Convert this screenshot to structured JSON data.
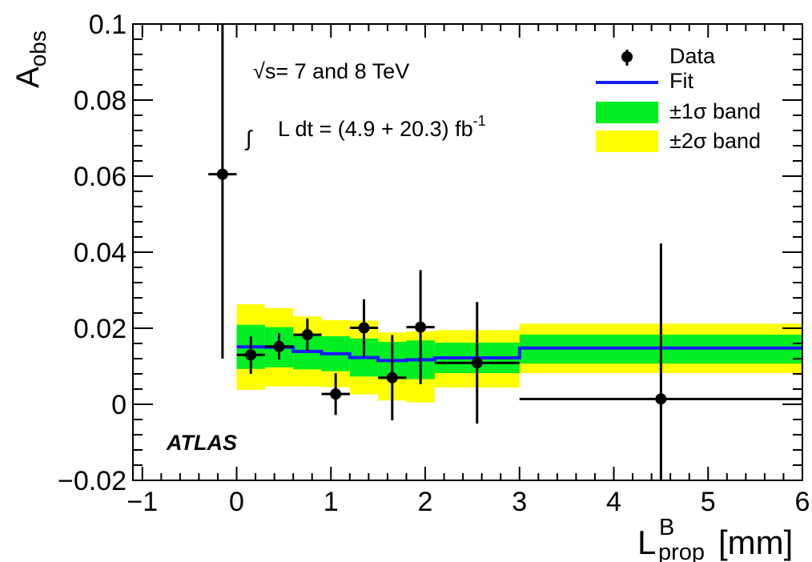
{
  "chart_data": {
    "type": "scatter",
    "xlabel_main": "L",
    "xlabel_sup": "B",
    "xlabel_sub": "prop",
    "xlabel_unit": "[mm]",
    "ylabel_main": "A",
    "ylabel_sub": "obs",
    "xlim": [
      -1.1,
      6
    ],
    "ylim": [
      -0.02,
      0.1
    ],
    "x_ticks": [
      -1,
      0,
      1,
      2,
      3,
      4,
      5,
      6
    ],
    "x_tick_labels": [
      "−1",
      "0",
      "1",
      "2",
      "3",
      "4",
      "5",
      "6"
    ],
    "y_ticks": [
      -0.02,
      0,
      0.02,
      0.04,
      0.06,
      0.08,
      0.1
    ],
    "y_tick_labels": [
      "−0.02",
      "0",
      "0.02",
      "0.04",
      "0.06",
      "0.08",
      "0.1"
    ],
    "data_points": [
      {
        "x": -0.15,
        "xlo": -0.3,
        "xhi": 0.0,
        "y": 0.0605,
        "ylo": 0.012,
        "yhi": 0.1
      },
      {
        "x": 0.15,
        "xlo": 0.0,
        "xhi": 0.3,
        "y": 0.013,
        "ylo": 0.008,
        "yhi": 0.0178
      },
      {
        "x": 0.45,
        "xlo": 0.3,
        "xhi": 0.6,
        "y": 0.0152,
        "ylo": 0.0118,
        "yhi": 0.0187
      },
      {
        "x": 0.75,
        "xlo": 0.6,
        "xhi": 0.9,
        "y": 0.0183,
        "ylo": 0.014,
        "yhi": 0.0226
      },
      {
        "x": 1.05,
        "xlo": 0.9,
        "xhi": 1.2,
        "y": 0.0027,
        "ylo": -0.0028,
        "yhi": 0.0082
      },
      {
        "x": 1.35,
        "xlo": 1.2,
        "xhi": 1.5,
        "y": 0.0201,
        "ylo": 0.0126,
        "yhi": 0.0276
      },
      {
        "x": 1.65,
        "xlo": 1.5,
        "xhi": 1.8,
        "y": 0.007,
        "ylo": -0.0042,
        "yhi": 0.0182
      },
      {
        "x": 1.95,
        "xlo": 1.8,
        "xhi": 2.1,
        "y": 0.0203,
        "ylo": 0.0053,
        "yhi": 0.0353
      },
      {
        "x": 2.55,
        "xlo": 2.1,
        "xhi": 3.0,
        "y": 0.0109,
        "ylo": -0.0051,
        "yhi": 0.0269
      },
      {
        "x": 4.5,
        "xlo": 3.0,
        "xhi": 6.0,
        "y": 0.0014,
        "ylo": -0.02,
        "yhi": 0.0423
      }
    ],
    "fit": {
      "name": "Fit",
      "color": "#1a1aff",
      "steps": [
        {
          "x0": 0.0,
          "x1": 0.3,
          "y": 0.0151,
          "s1lo": 0.0093,
          "s1hi": 0.0209,
          "s2lo": 0.0038,
          "s2hi": 0.0263
        },
        {
          "x0": 0.3,
          "x1": 0.6,
          "y": 0.015,
          "s1lo": 0.0097,
          "s1hi": 0.0203,
          "s2lo": 0.0047,
          "s2hi": 0.0253
        },
        {
          "x0": 0.6,
          "x1": 0.9,
          "y": 0.0139,
          "s1lo": 0.0092,
          "s1hi": 0.0186,
          "s2lo": 0.0047,
          "s2hi": 0.0231
        },
        {
          "x0": 0.9,
          "x1": 1.2,
          "y": 0.0133,
          "s1lo": 0.0087,
          "s1hi": 0.0179,
          "s2lo": 0.0045,
          "s2hi": 0.0221
        },
        {
          "x0": 1.2,
          "x1": 1.5,
          "y": 0.0123,
          "s1lo": 0.0073,
          "s1hi": 0.0173,
          "s2lo": 0.0026,
          "s2hi": 0.022
        },
        {
          "x0": 1.5,
          "x1": 1.8,
          "y": 0.0115,
          "s1lo": 0.0066,
          "s1hi": 0.0164,
          "s2lo": 0.001,
          "s2hi": 0.0189
        },
        {
          "x0": 1.8,
          "x1": 2.1,
          "y": 0.0117,
          "s1lo": 0.0066,
          "s1hi": 0.0168,
          "s2lo": 0.0005,
          "s2hi": 0.0192
        },
        {
          "x0": 2.1,
          "x1": 3.0,
          "y": 0.0122,
          "s1lo": 0.0082,
          "s1hi": 0.0162,
          "s2lo": 0.0044,
          "s2hi": 0.0195
        },
        {
          "x0": 3.0,
          "x1": 6.0,
          "y": 0.0148,
          "s1lo": 0.0107,
          "s1hi": 0.0183,
          "s2lo": 0.0082,
          "s2hi": 0.0212
        }
      ]
    },
    "band_colors": {
      "one_sigma": "#00ee22",
      "two_sigma": "#ffff00"
    },
    "legend": {
      "position": "top-right",
      "entries": [
        {
          "label": "Data",
          "kind": "marker"
        },
        {
          "label": "Fit",
          "kind": "line"
        },
        {
          "label": "±1σ band",
          "kind": "fill-green"
        },
        {
          "label": "±2σ band",
          "kind": "fill-yellow"
        }
      ]
    },
    "annotations": {
      "sqrt_s": "√s= 7 and 8 TeV",
      "integral_sign": "∫",
      "lumi": "L dt = (4.9 + 20.3) fb",
      "lumi_sup": "-1",
      "experiment": "ATLAS"
    },
    "grid": false
  }
}
